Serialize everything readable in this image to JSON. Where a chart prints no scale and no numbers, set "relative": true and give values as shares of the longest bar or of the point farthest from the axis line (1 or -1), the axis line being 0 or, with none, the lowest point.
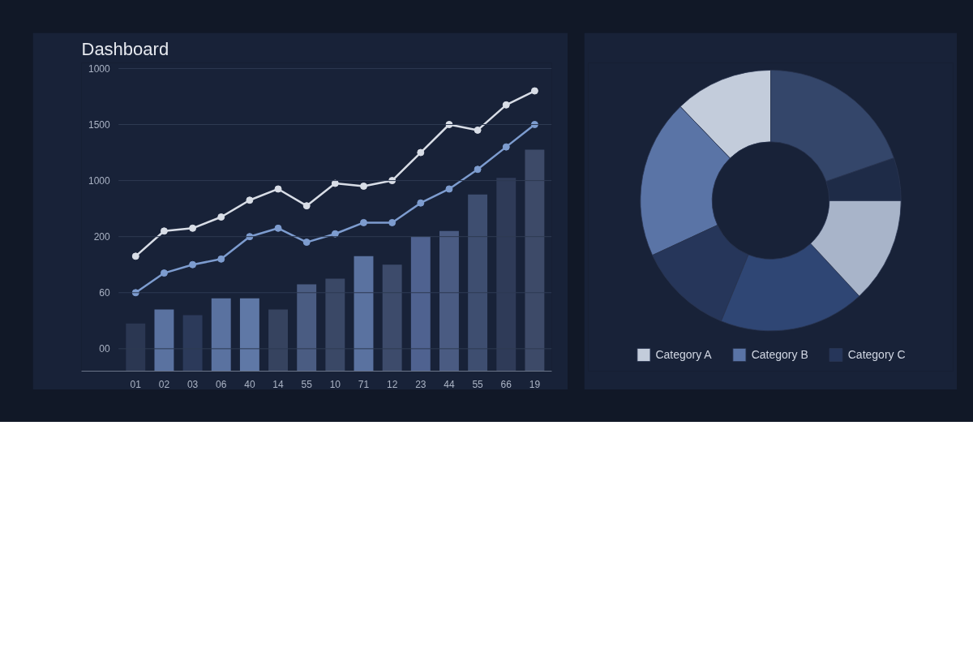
{
  "chart_data": [
    {
      "type": "bar",
      "title": "Dashboard",
      "relative": true,
      "categories": [
        "01",
        "02",
        "03",
        "06",
        "40",
        "14",
        "55",
        "10",
        "71",
        "12",
        "23",
        "44",
        "55",
        "66",
        "19"
      ],
      "values": [
        0.17,
        0.22,
        0.2,
        0.26,
        0.26,
        0.22,
        0.31,
        0.33,
        0.41,
        0.38,
        0.48,
        0.5,
        0.63,
        0.69,
        0.79
      ],
      "colors": [
        "#2b3752",
        "#5a72a0",
        "#2c3a5a",
        "#5a72a0",
        "#5f78a6",
        "#36435f",
        "#4a5c82",
        "#3a4866",
        "#5a72a0",
        "#3d4b6b",
        "#4f6290",
        "#4a5b82",
        "#3e4e70",
        "#2f3b58",
        "#3d4a68"
      ],
      "series": [
        {
          "type": "line",
          "color": "#d8dde6",
          "values": [
            0.41,
            0.5,
            0.51,
            0.55,
            0.61,
            0.65,
            0.59,
            0.67,
            0.66,
            0.68,
            0.78,
            0.88,
            0.86,
            0.95,
            1
          ]
        },
        {
          "type": "line",
          "color": "#7d9ccf",
          "values": [
            0.28,
            0.35,
            0.38,
            0.4,
            0.48,
            0.51,
            0.46,
            0.49,
            0.53,
            0.53,
            0.6,
            0.65,
            0.72,
            0.8,
            0.88
          ]
        }
      ],
      "annotations": [
        "00",
        "60",
        "200",
        "1000",
        "1500",
        "1000"
      ],
      "grid": "y",
      "marker": "circle",
      "line_style": "solid"
    },
    {
      "type": "donut",
      "categories": [
        "Category A",
        "Category B",
        "Category C",
        null,
        null,
        null,
        null
      ],
      "values": [
        12.2,
        19.7,
        11.9,
        18.1,
        13.1,
        5.3,
        19.7
      ],
      "colors": [
        "#c3ccdb",
        "#5a74a6",
        "#26365a",
        "#2f4674",
        "#a8b4c9",
        "#1e2b47",
        "#34466a"
      ],
      "legend": "bottom"
    }
  ]
}
